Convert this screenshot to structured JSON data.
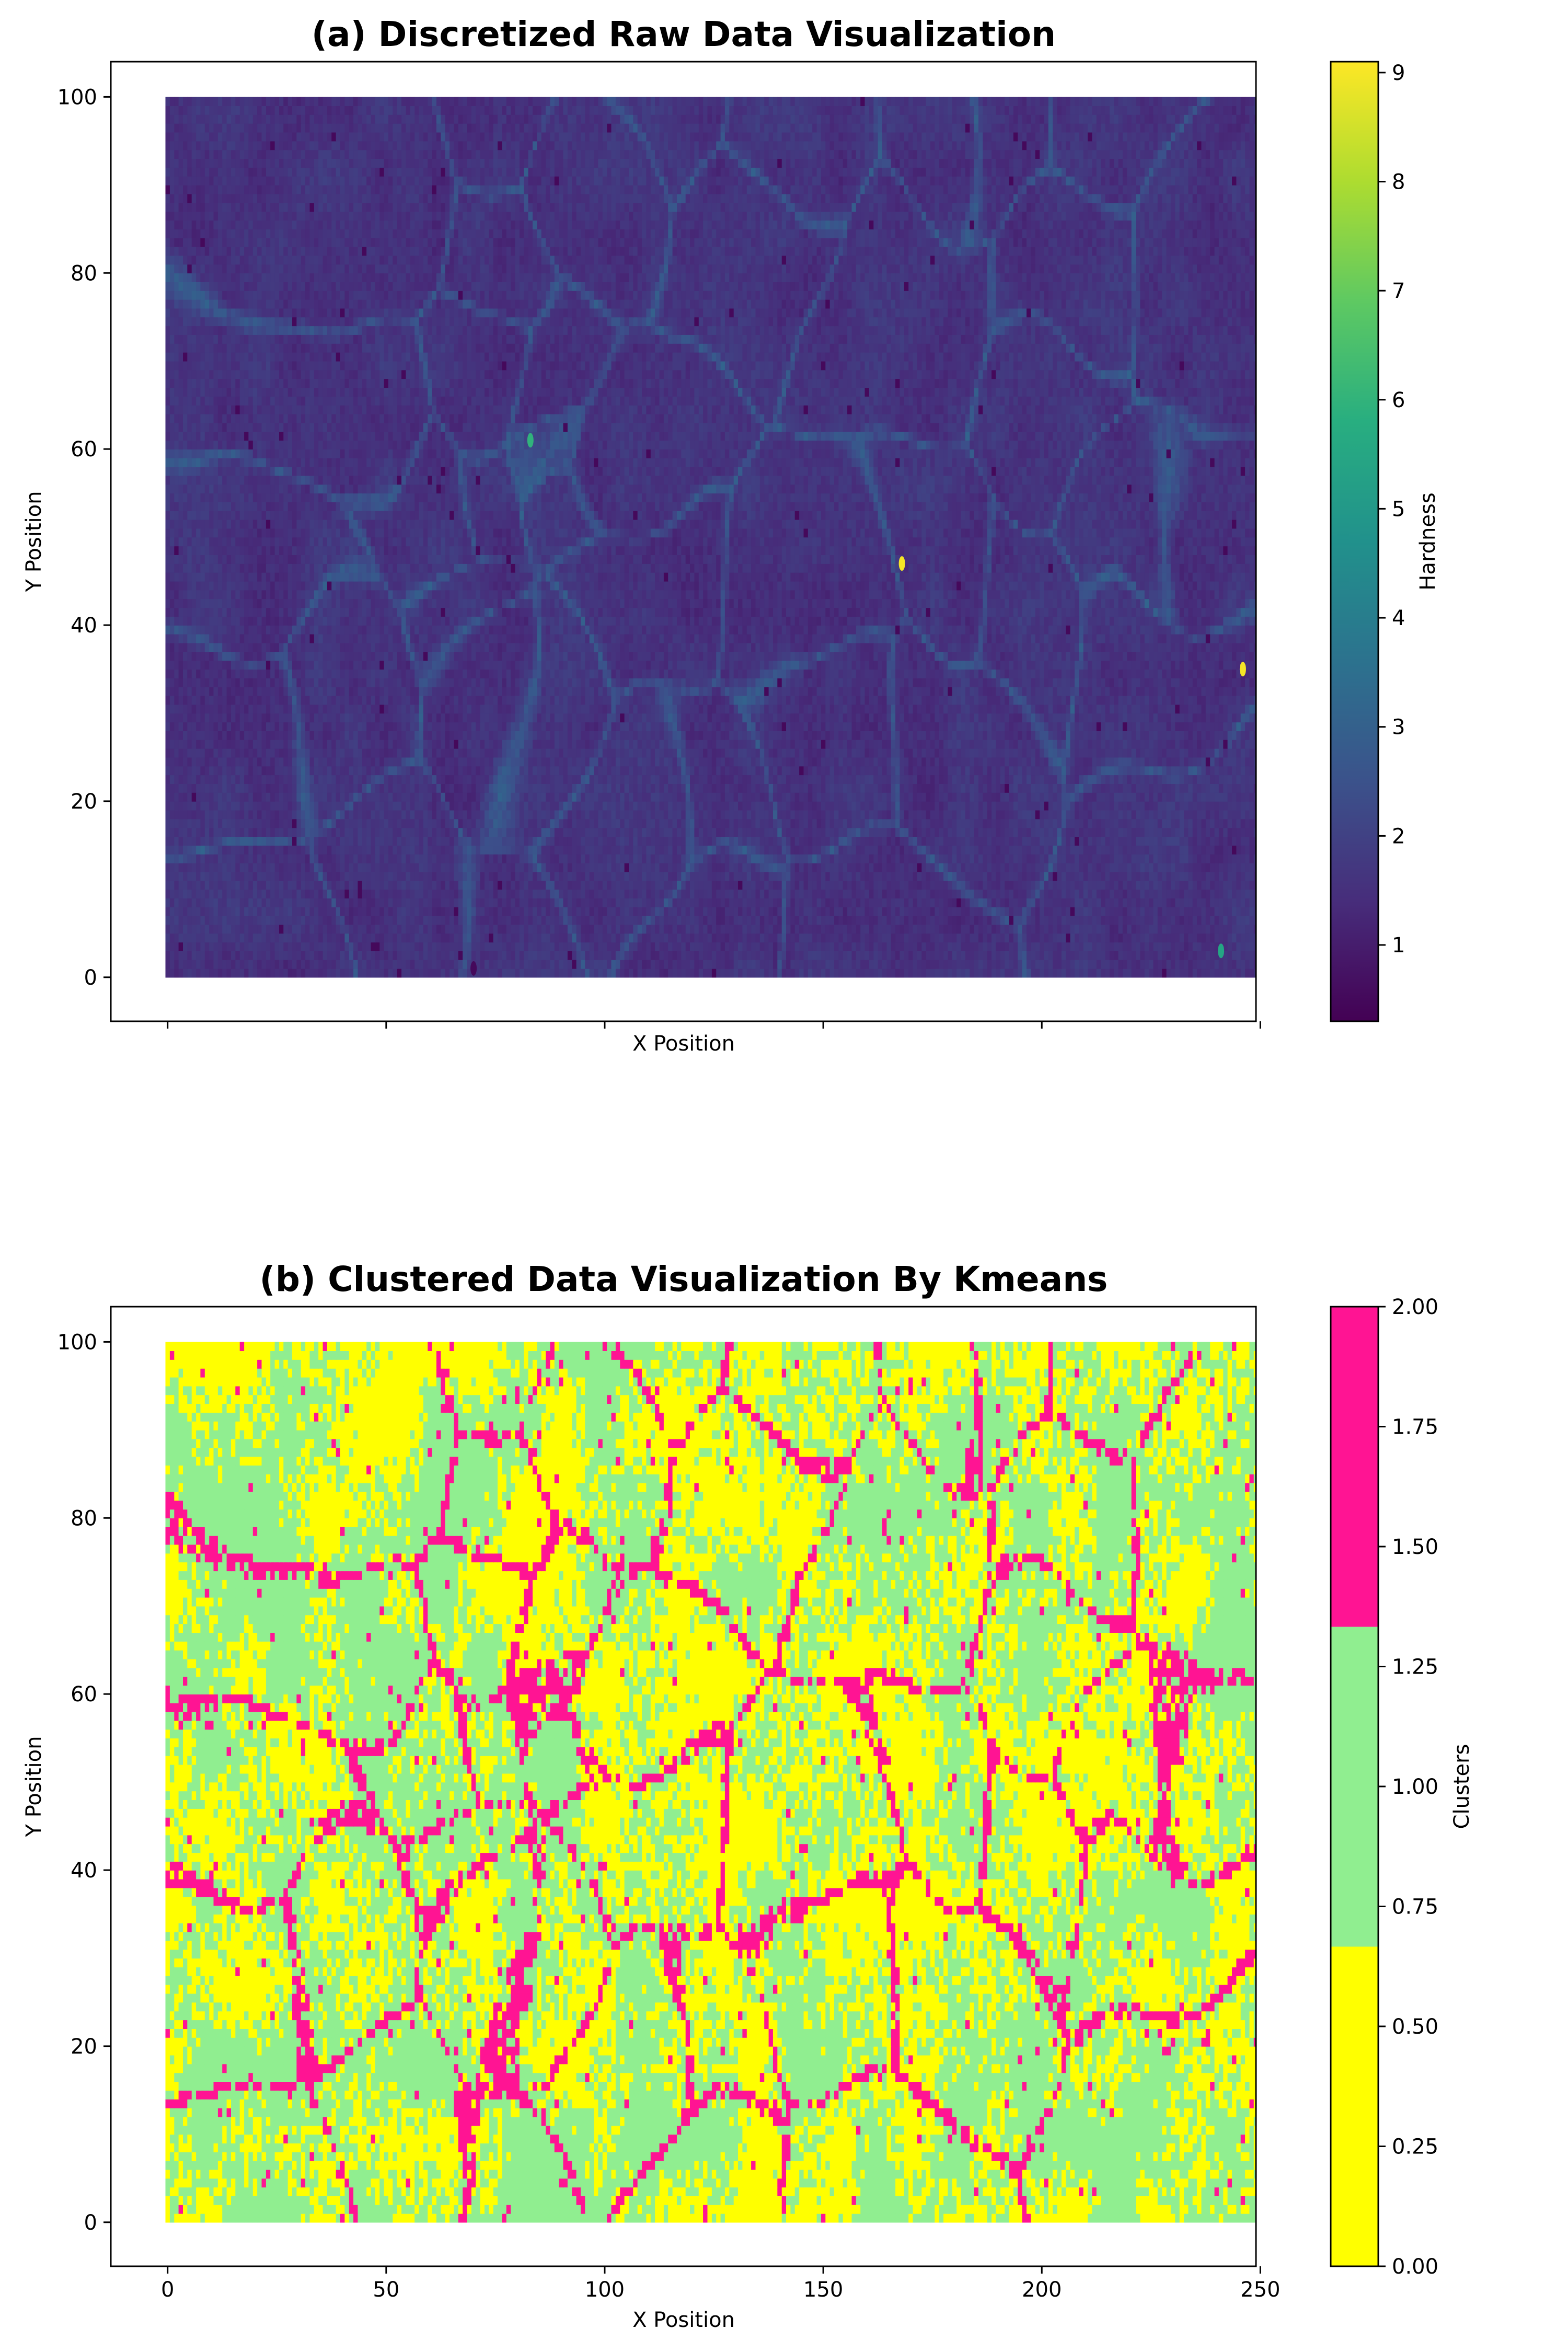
{
  "chart_data": [
    {
      "type": "heatmap",
      "title": "(a) Discretized Raw Data Visualization",
      "xlabel": "X Position",
      "ylabel": "Y Position",
      "xlim": [
        -13,
        249
      ],
      "ylim": [
        -5,
        104
      ],
      "xticks": [
        0,
        50,
        100,
        150,
        200,
        250
      ],
      "xtick_labels_visible": false,
      "yticks": [
        0,
        20,
        40,
        60,
        80,
        100
      ],
      "grid": false,
      "colorbar": {
        "label": "Hardness",
        "colormap": "viridis",
        "range": [
          0.3,
          9.1
        ],
        "ticks": [
          1,
          2,
          3,
          4,
          5,
          6,
          7,
          8,
          9
        ]
      },
      "base_value": 1.6,
      "features": [
        {
          "x": 168,
          "y": 47,
          "value": 9.0
        },
        {
          "x": 246,
          "y": 35,
          "value": 9.0
        },
        {
          "x": 83,
          "y": 61,
          "value": 6.0
        },
        {
          "x": 241,
          "y": 3,
          "value": 5.5
        },
        {
          "x": 70,
          "y": 1,
          "value": 0.5
        }
      ]
    },
    {
      "type": "heatmap",
      "title": "(b) Clustered Data Visualization By Kmeans",
      "xlabel": "X Position",
      "ylabel": "Y Position",
      "xlim": [
        -13,
        249
      ],
      "ylim": [
        -5,
        104
      ],
      "xticks": [
        0,
        50,
        100,
        150,
        200,
        250
      ],
      "xtick_labels": [
        "0",
        "50",
        "100",
        "150",
        "200",
        "250"
      ],
      "yticks": [
        0,
        20,
        40,
        60,
        80,
        100
      ],
      "grid": false,
      "colorbar": {
        "label": "Clusters",
        "range": [
          0,
          2
        ],
        "ticks": [
          "0.00",
          "0.25",
          "0.50",
          "0.75",
          "1.00",
          "1.25",
          "1.50",
          "1.75",
          "2.00"
        ],
        "colors": [
          "#ffff00",
          "#90ee90",
          "#ff1493"
        ]
      },
      "clusters": [
        {
          "value": 0,
          "color": "#ffff00"
        },
        {
          "value": 1,
          "color": "#90ee90"
        },
        {
          "value": 2,
          "color": "#ff1493"
        }
      ]
    }
  ],
  "ytick_labels": [
    "0",
    "20",
    "40",
    "60",
    "80",
    "100"
  ],
  "cbar_a_tick_labels": [
    "1",
    "2",
    "3",
    "4",
    "5",
    "6",
    "7",
    "8",
    "9"
  ]
}
